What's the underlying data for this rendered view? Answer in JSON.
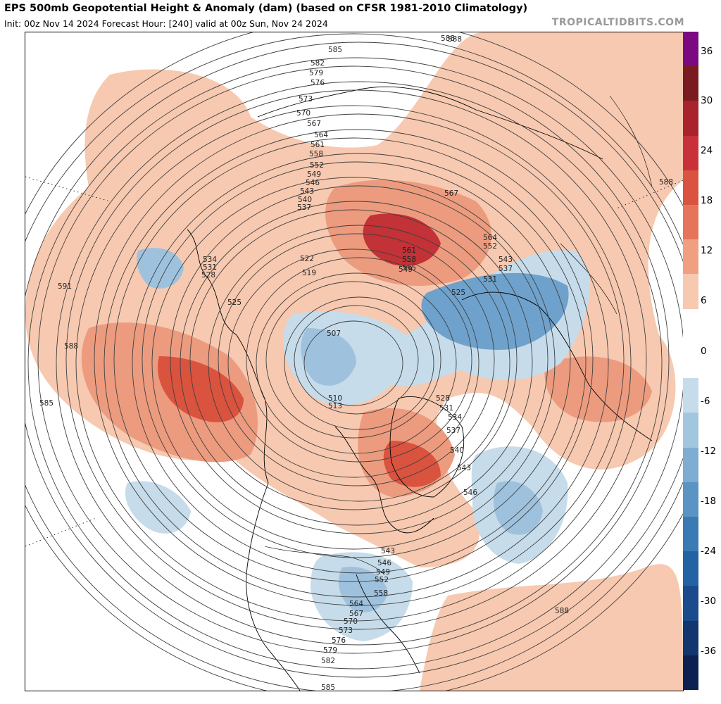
{
  "header": {
    "title": "EPS 500mb Geopotential Height & Anomaly (dam) (based on CFSR 1981-2010 Climatology)",
    "subtitle": "Init: 00z Nov 14 2024   Forecast Hour: [240]   valid at 00z Sun, Nov 24 2024",
    "credit": "TROPICALTIDBITS.COM"
  },
  "colorbar": {
    "ticks": [
      "36",
      "30",
      "24",
      "18",
      "12",
      "6",
      "0",
      "-6",
      "-12",
      "-18",
      "-24",
      "-30",
      "-36"
    ],
    "colors": [
      "#7b0a82",
      "#7a1a21",
      "#a8232b",
      "#c8313a",
      "#d9533f",
      "#e6745a",
      "#f0a081",
      "#f7c9b0",
      "#ffffff",
      "#ffffff",
      "#c6dcea",
      "#a3c6df",
      "#7eadd1",
      "#5a94c4",
      "#3b7bb4",
      "#2363a3",
      "#1a4b8c",
      "#13366f",
      "#0c2152"
    ]
  },
  "map": {
    "anomaly_colors": {
      "pos_light": "#f7c9b0",
      "pos_med": "#ec9b7e",
      "pos_strong": "#d9533f",
      "pos_max": "#c23236",
      "neg_light": "#c6dcea",
      "neg_med": "#9ec2de",
      "neg_strong": "#6ea2cc",
      "neg_max": "#4a86bd"
    },
    "contour_labels": [
      "588",
      "585",
      "582",
      "579",
      "576",
      "573",
      "570",
      "567",
      "564",
      "561",
      "558",
      "552",
      "549",
      "546",
      "543",
      "540",
      "537",
      "534",
      "531",
      "528",
      "525",
      "522",
      "519",
      "507",
      "510",
      "513",
      "591",
      "588",
      "585",
      "567",
      "564",
      "561",
      "558",
      "555",
      "552",
      "549",
      "543",
      "537",
      "531",
      "525",
      "528",
      "531",
      "534",
      "537",
      "540",
      "543",
      "546",
      "543",
      "546",
      "549",
      "552",
      "558",
      "564",
      "567",
      "570",
      "573",
      "576",
      "579",
      "582",
      "585",
      "588",
      "588",
      "588"
    ]
  }
}
